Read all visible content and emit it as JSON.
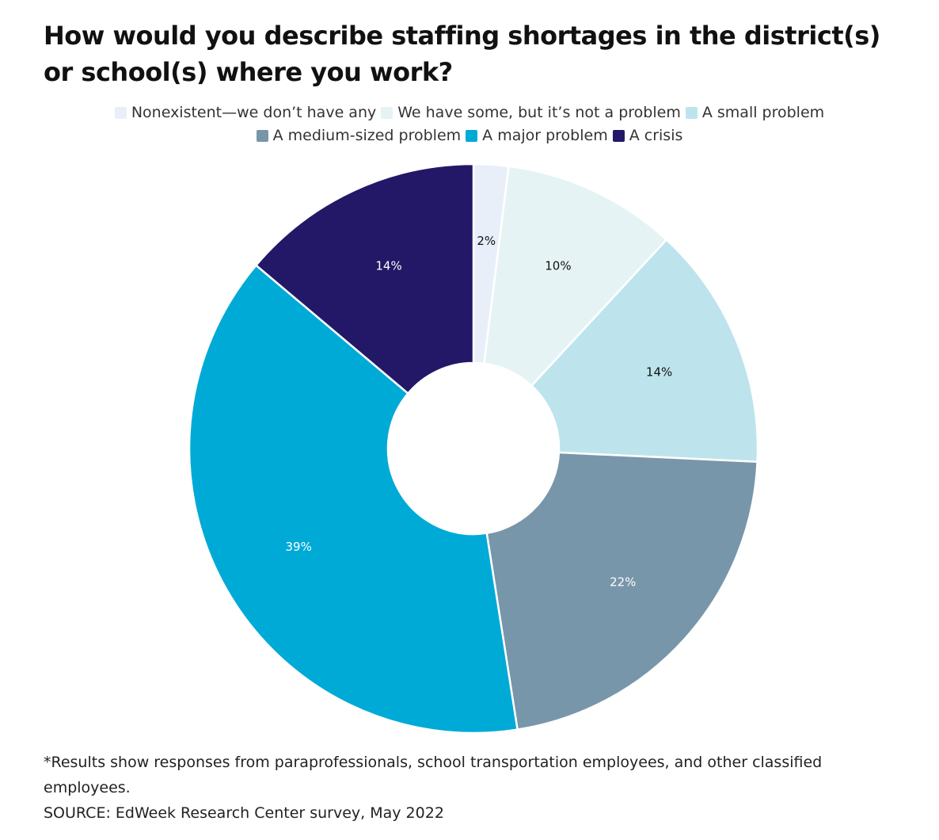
{
  "chart_data": {
    "type": "pie",
    "title": "How would you describe staffing shortages in the district(s) or school(s) where you work?",
    "categories": [
      "Nonexistent—we don’t have any",
      "We have some, but it’s not a problem",
      "A small problem",
      "A medium-sized problem",
      "A major problem",
      "A crisis"
    ],
    "values": [
      2,
      10,
      14,
      22,
      39,
      14
    ],
    "value_labels": [
      "2%",
      "10%",
      "14%",
      "22%",
      "39%",
      "14%"
    ],
    "colors": [
      "#e9eff9",
      "#e6f3f4",
      "#bde4ec",
      "#7896aa",
      "#00aad6",
      "#231867"
    ],
    "label_colors": [
      "#111111",
      "#111111",
      "#111111",
      "#ffffff",
      "#ffffff",
      "#ffffff"
    ],
    "legend_placement": "top-center",
    "donut": true
  },
  "legend": {
    "row1": [
      {
        "label": "Nonexistent—we don’t have any",
        "color": "#e9eff9"
      },
      {
        "label": "We have some, but it’s not a problem",
        "color": "#e6f3f4"
      },
      {
        "label": "A small problem",
        "color": "#bde4ec"
      }
    ],
    "row2": [
      {
        "label": "A medium-sized problem",
        "color": "#7896aa"
      },
      {
        "label": "A major problem",
        "color": "#00aad6"
      },
      {
        "label": "A crisis",
        "color": "#231867"
      }
    ]
  },
  "notes": {
    "footnote": "*Results show responses from paraprofessionals, school transportation employees, and other classified employees.",
    "source": "SOURCE: EdWeek Research Center survey, May 2022"
  }
}
